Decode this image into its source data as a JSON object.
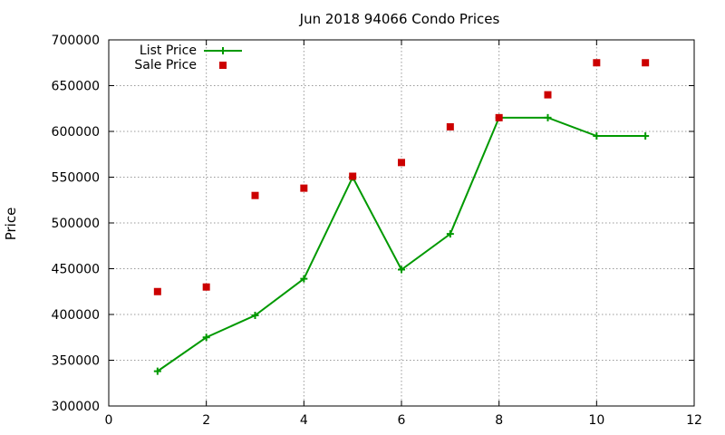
{
  "chart_data": {
    "type": "line",
    "title": "Jun 2018 94066 Condo Prices",
    "xlabel": "",
    "ylabel": "Price",
    "xlim": [
      0,
      12
    ],
    "ylim": [
      300000,
      700000
    ],
    "xticks": [
      "0",
      "2",
      "4",
      "6",
      "8",
      "10",
      "12"
    ],
    "yticks": [
      "300000",
      "350000",
      "400000",
      "450000",
      "500000",
      "550000",
      "600000",
      "650000",
      "700000"
    ],
    "grid": true,
    "legend_position": "top-left",
    "series": [
      {
        "name": "List Price",
        "style": "line-with-plus-markers",
        "color": "#009900",
        "x": [
          1,
          2,
          3,
          4,
          5,
          6,
          7,
          8,
          9,
          10,
          11
        ],
        "y": [
          338000,
          375000,
          399000,
          439000,
          550000,
          449000,
          488000,
          615000,
          615000,
          595000,
          595000
        ]
      },
      {
        "name": "Sale Price",
        "style": "square-markers",
        "color": "#cc0000",
        "x": [
          1,
          2,
          3,
          4,
          5,
          6,
          7,
          8,
          9,
          10,
          11
        ],
        "y": [
          425000,
          430000,
          530000,
          538000,
          551000,
          566000,
          605000,
          615000,
          640000,
          675000,
          675000
        ]
      }
    ]
  }
}
